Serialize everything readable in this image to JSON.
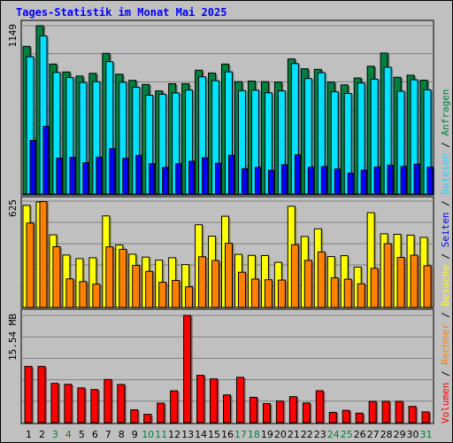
{
  "chart_data": {
    "type": "bar",
    "title": "Tages-Statistik im Monat Mai 2025",
    "categories": [
      "1",
      "2",
      "3",
      "4",
      "5",
      "6",
      "7",
      "8",
      "9",
      "10",
      "11",
      "12",
      "13",
      "14",
      "15",
      "16",
      "17",
      "18",
      "19",
      "20",
      "21",
      "22",
      "23",
      "24",
      "25",
      "26",
      "27",
      "28",
      "29",
      "30",
      "31"
    ],
    "weekend_days": [
      "3",
      "4",
      "10",
      "11",
      "17",
      "18",
      "24",
      "25",
      "31"
    ],
    "colors": {
      "anfragen": "#008040",
      "dateien": "#00e0ff",
      "seiten": "#0000ff",
      "besuche": "#ffff00",
      "rechner": "#ff8000",
      "volumen": "#ff0000",
      "title": "#0000ff",
      "weekend_label": "#008040",
      "weekday_label": "#000000"
    },
    "panels": [
      {
        "id": "top",
        "ytick": "1149",
        "ymax": 1149,
        "series": [
          {
            "name": "Anfragen",
            "values": [
              1008,
              1149,
              887,
              833,
              805,
              824,
              960,
              818,
              776,
              748,
              704,
              753,
              753,
              845,
              826,
              887,
              767,
              771,
              767,
              764,
              922,
              855,
              851,
              764,
              745,
              792,
              872,
              962,
              797,
              811,
              777
            ]
          },
          {
            "name": "Dateien",
            "values": [
              937,
              1079,
              830,
              795,
              761,
              767,
              903,
              763,
              729,
              674,
              681,
              690,
              710,
              800,
              774,
              834,
              706,
              709,
              691,
              704,
              890,
              788,
              828,
              698,
              686,
              758,
              784,
              866,
              702,
              780,
              711
            ]
          },
          {
            "name": "Seiten",
            "values": [
              366,
              462,
              245,
              250,
              214,
              252,
              310,
              244,
              264,
              207,
              181,
              207,
              224,
              247,
              210,
              265,
              173,
              182,
              162,
              200,
              268,
              182,
              187,
              171,
              143,
              164,
              184,
              197,
              188,
              204,
              183
            ]
          }
        ]
      },
      {
        "id": "middle",
        "ytick": "625",
        "ymax": 625,
        "series": [
          {
            "name": "Besuche",
            "values": [
              600,
              620,
              427,
              308,
              287,
              292,
              538,
              367,
              313,
              296,
              278,
              292,
              252,
              486,
              419,
              536,
              312,
              306,
              305,
              265,
              595,
              417,
              462,
              299,
              304,
              237,
              557,
              433,
              430,
              425,
              412
            ]
          },
          {
            "name": "Rechner",
            "values": [
              496,
              622,
              357,
              168,
              152,
              137,
              356,
              342,
              247,
              212,
              148,
              159,
              121,
              298,
              276,
              377,
              207,
              167,
              163,
              161,
              369,
              277,
              326,
              174,
              166,
              139,
              230,
              375,
              294,
              307,
              245
            ]
          }
        ]
      },
      {
        "id": "bottom",
        "ytick": "15.54 MB",
        "ymax": 15.54,
        "series": [
          {
            "name": "Volumen",
            "values": [
              8.14,
              8.14,
              5.69,
              5.55,
              5.03,
              4.79,
              6.25,
              5.53,
              1.86,
              1.21,
              2.82,
              4.61,
              15.54,
              6.86,
              6.34,
              4.02,
              6.57,
              3.67,
              2.76,
              3.12,
              3.77,
              2.85,
              4.62,
              1.49,
              1.78,
              1.38,
              3.08,
              3.09,
              3.09,
              2.35,
              1.56
            ]
          }
        ]
      }
    ],
    "legend_right": [
      "Volumen",
      "/",
      "Rechner",
      "/",
      "Besuche",
      "/",
      "Seiten",
      "/",
      "Dateien",
      "/",
      "Anfragen"
    ]
  }
}
